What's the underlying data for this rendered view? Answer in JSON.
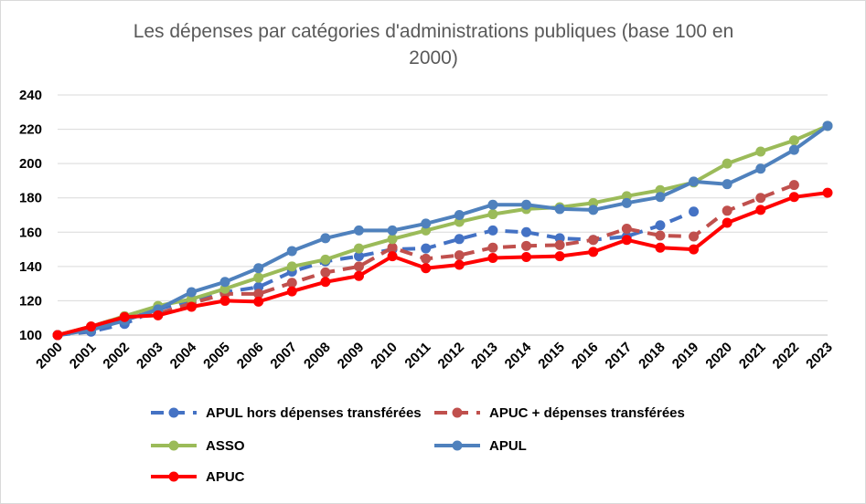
{
  "chart_data": {
    "type": "line",
    "title_lines": [
      "Les dépenses par catégories d'administrations publiques (base 100 en",
      "2000)"
    ],
    "ylim": [
      100,
      240
    ],
    "yticks": [
      100,
      120,
      140,
      160,
      180,
      200,
      220,
      240
    ],
    "grid": true,
    "legend_position": "bottom",
    "x": [
      "2000",
      "2001",
      "2002",
      "2003",
      "2004",
      "2005",
      "2006",
      "2007",
      "2008",
      "2009",
      "2010",
      "2011",
      "2012",
      "2013",
      "2014",
      "2015",
      "2016",
      "2017",
      "2018",
      "2019",
      "2020",
      "2021",
      "2022",
      "2023"
    ],
    "series": [
      {
        "name": "APUL hors dépenses transférées",
        "color": "#4472c4",
        "dashed": true,
        "values": [
          100,
          102,
          106.5,
          115,
          120.5,
          125,
          128,
          137,
          143,
          146,
          150,
          150.5,
          156,
          161,
          160,
          156.5,
          155.5,
          157.5,
          164,
          172,
          null,
          null,
          null,
          null
        ]
      },
      {
        "name": "APUC + dépenses transférées",
        "color": "#c0504d",
        "dashed": true,
        "values": [
          100,
          105,
          111,
          112.5,
          118.5,
          124,
          124,
          130.5,
          136.5,
          140,
          151,
          144.5,
          146.5,
          151,
          152,
          152.5,
          155.5,
          162,
          158,
          157.5,
          172.5,
          180,
          187.5,
          null
        ]
      },
      {
        "name": "ASSO",
        "color": "#9bbb59",
        "dashed": false,
        "values": [
          100,
          105,
          111,
          117,
          121,
          127,
          133.5,
          140,
          144,
          150.5,
          156,
          161,
          166,
          170.5,
          173.5,
          174.5,
          177,
          181,
          184.5,
          189,
          200,
          207,
          213.5,
          222
        ]
      },
      {
        "name": "APUL",
        "color": "#4f81bd",
        "dashed": false,
        "values": [
          100,
          103,
          108.5,
          115,
          125,
          131,
          139,
          149,
          156.5,
          161,
          161,
          165,
          170,
          176,
          176,
          173.5,
          173,
          177,
          180.5,
          189.5,
          188,
          197,
          208,
          222
        ]
      },
      {
        "name": "APUC",
        "color": "#ff0000",
        "dashed": false,
        "values": [
          100,
          105,
          110.5,
          111.5,
          116.5,
          120,
          119.5,
          125.5,
          131,
          134.5,
          146,
          139,
          141,
          145,
          145.5,
          146,
          148.5,
          155.5,
          151,
          150,
          165.5,
          173,
          180.5,
          183
        ]
      }
    ]
  }
}
